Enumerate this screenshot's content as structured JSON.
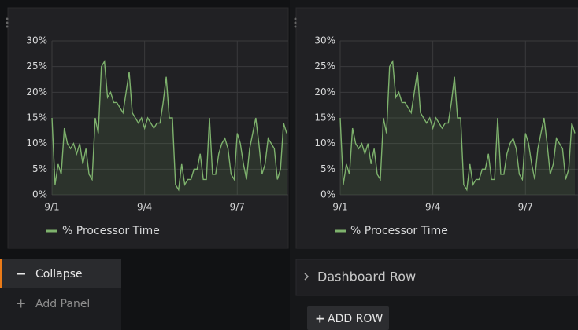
{
  "chart_data": [
    {
      "type": "line",
      "x": [
        0,
        0.1,
        0.2,
        0.3,
        0.4,
        0.5,
        0.6,
        0.7,
        0.8,
        0.9,
        1,
        1.1,
        1.2,
        1.3,
        1.4,
        1.5,
        1.6,
        1.7,
        1.8,
        1.9,
        2,
        2.1,
        2.2,
        2.3,
        2.4,
        2.5,
        2.6,
        2.7,
        2.8,
        2.9,
        3,
        3.1,
        3.2,
        3.3,
        3.4,
        3.5,
        3.6,
        3.7,
        3.8,
        3.9,
        4,
        4.1,
        4.2,
        4.3,
        4.4,
        4.5,
        4.6,
        4.7,
        4.8,
        4.9,
        5,
        5.1,
        5.2,
        5.3,
        5.4,
        5.5,
        5.6,
        5.7,
        5.8,
        5.9,
        6,
        6.1,
        6.2,
        6.3,
        6.4,
        6.5,
        6.6,
        6.7,
        6.8,
        6.9,
        7,
        7.1,
        7.2,
        7.3,
        7.4,
        7.5,
        7.6
      ],
      "series": [
        {
          "name": "% Processor Time",
          "color": "#7eb26d",
          "values": [
            15,
            2,
            6,
            4,
            13,
            10,
            9,
            10,
            8,
            10,
            6,
            9,
            4,
            3,
            15,
            12,
            25,
            26,
            19,
            20,
            18,
            18,
            17,
            16,
            20,
            24,
            16,
            15,
            14,
            15,
            13,
            15,
            14,
            13,
            14,
            14,
            18,
            23,
            15,
            15,
            2,
            1,
            6,
            2,
            3,
            3,
            5,
            5,
            8,
            3,
            3,
            15,
            4,
            4,
            8,
            10,
            11,
            9,
            4,
            3,
            12,
            10,
            6,
            3,
            9,
            12,
            15,
            10,
            4,
            6,
            11,
            10,
            9,
            3,
            5,
            14,
            12
          ]
        }
      ],
      "xlim": [
        0,
        7.65
      ],
      "xticks": [
        {
          "value": 0,
          "label": "9/1"
        },
        {
          "value": 3,
          "label": "9/4"
        },
        {
          "value": 6,
          "label": "9/7"
        }
      ],
      "ylim": [
        0,
        30
      ],
      "yticks": [
        {
          "value": 0,
          "label": "0%"
        },
        {
          "value": 5,
          "label": "5%"
        },
        {
          "value": 10,
          "label": "10%"
        },
        {
          "value": 15,
          "label": "15%"
        },
        {
          "value": 20,
          "label": "20%"
        },
        {
          "value": 25,
          "label": "25%"
        },
        {
          "value": 30,
          "label": "30%"
        }
      ],
      "grid": true
    },
    {
      "type": "line",
      "x": [
        0,
        0.1,
        0.2,
        0.3,
        0.4,
        0.5,
        0.6,
        0.7,
        0.8,
        0.9,
        1,
        1.1,
        1.2,
        1.3,
        1.4,
        1.5,
        1.6,
        1.7,
        1.8,
        1.9,
        2,
        2.1,
        2.2,
        2.3,
        2.4,
        2.5,
        2.6,
        2.7,
        2.8,
        2.9,
        3,
        3.1,
        3.2,
        3.3,
        3.4,
        3.5,
        3.6,
        3.7,
        3.8,
        3.9,
        4,
        4.1,
        4.2,
        4.3,
        4.4,
        4.5,
        4.6,
        4.7,
        4.8,
        4.9,
        5,
        5.1,
        5.2,
        5.3,
        5.4,
        5.5,
        5.6,
        5.7,
        5.8,
        5.9,
        6,
        6.1,
        6.2,
        6.3,
        6.4,
        6.5,
        6.6,
        6.7,
        6.8,
        6.9,
        7,
        7.1,
        7.2,
        7.3,
        7.4,
        7.5,
        7.6
      ],
      "series": [
        {
          "name": "% Processor Time",
          "color": "#7eb26d",
          "values": [
            15,
            2,
            6,
            4,
            13,
            10,
            9,
            10,
            8,
            10,
            6,
            9,
            4,
            3,
            15,
            12,
            25,
            26,
            19,
            20,
            18,
            18,
            17,
            16,
            20,
            24,
            16,
            15,
            14,
            15,
            13,
            15,
            14,
            13,
            14,
            14,
            18,
            23,
            15,
            15,
            2,
            1,
            6,
            2,
            3,
            3,
            5,
            5,
            8,
            3,
            3,
            15,
            4,
            4,
            8,
            10,
            11,
            9,
            4,
            3,
            12,
            10,
            6,
            3,
            9,
            12,
            15,
            10,
            4,
            6,
            11,
            10,
            9,
            3,
            5,
            14,
            12
          ]
        }
      ],
      "xlim": [
        0,
        7.65
      ],
      "xticks": [
        {
          "value": 0,
          "label": "9/1"
        },
        {
          "value": 3,
          "label": "9/4"
        },
        {
          "value": 6,
          "label": "9/7"
        }
      ],
      "ylim": [
        0,
        30
      ],
      "yticks": [
        {
          "value": 0,
          "label": "0%"
        },
        {
          "value": 5,
          "label": "5%"
        },
        {
          "value": 10,
          "label": "10%"
        },
        {
          "value": 15,
          "label": "15%"
        },
        {
          "value": 20,
          "label": "20%"
        },
        {
          "value": 25,
          "label": "25%"
        },
        {
          "value": 30,
          "label": "30%"
        }
      ],
      "grid": true
    }
  ],
  "menu": {
    "items": [
      "Collapse",
      "Add Panel"
    ]
  },
  "row": {
    "title": "Dashboard Row"
  },
  "button": {
    "label": "ADD ROW"
  }
}
